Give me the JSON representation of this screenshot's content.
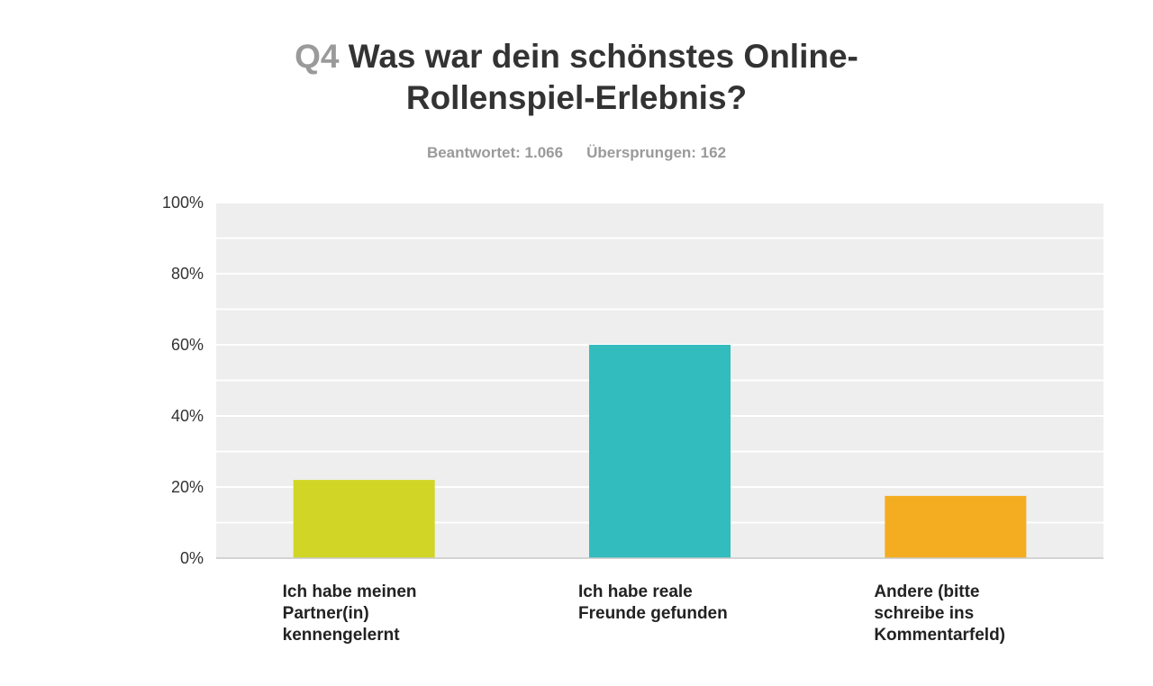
{
  "title": {
    "number": "Q4",
    "line1": "Was war dein schönstes Online-",
    "line2": "Rollenspiel-Erlebnis?"
  },
  "stats": {
    "answered": "Beantwortet: 1.066",
    "skipped": "Übersprungen: 162"
  },
  "chart_data": {
    "type": "bar",
    "categories": [
      "Ich habe meinen Partner(in) kennengelernt",
      "Ich habe reale Freunde gefunden",
      "Andere (bitte schreibe ins Kommentarfeld)"
    ],
    "category_lines": [
      "Ich habe meinen\nPartner(in)\nkennengelernt",
      "Ich habe reale\nFreunde gefunden",
      "Andere (bitte\nschreibe ins\nKommentarfeld)"
    ],
    "values": [
      22,
      60,
      17.5
    ],
    "colors": [
      "#d1d525",
      "#33bcbe",
      "#f4ad20"
    ],
    "unit": "%",
    "ylim": [
      0,
      100
    ],
    "yticks": [
      0,
      20,
      40,
      60,
      80,
      100
    ],
    "ytick_labels": [
      "0%",
      "20%",
      "40%",
      "60%",
      "80%",
      "100%"
    ],
    "grid": true,
    "title": "Was war dein schönstes Online-Rollenspiel-Erlebnis?",
    "xlabel": "",
    "ylabel": ""
  }
}
